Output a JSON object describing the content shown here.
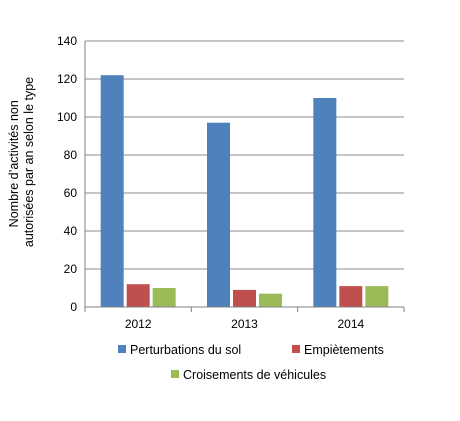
{
  "chart_data": {
    "type": "bar",
    "title": "",
    "xlabel": "",
    "ylabel": [
      "Nombre d’activités non",
      "autorisées par an selon le type"
    ],
    "categories": [
      "2012",
      "2013",
      "2014"
    ],
    "ylim": [
      0,
      140
    ],
    "yticks": [
      0,
      20,
      40,
      60,
      80,
      100,
      120,
      140
    ],
    "grid": true,
    "legend_position": "bottom",
    "series": [
      {
        "name": "Perturbations du sol",
        "color": "#4f81bd",
        "values": [
          122,
          97,
          110
        ]
      },
      {
        "name": "Empiètements",
        "color": "#c0504d",
        "values": [
          12,
          9,
          11
        ]
      },
      {
        "name": "Croisements de véhicules",
        "color": "#9bbb59",
        "values": [
          10,
          7,
          11
        ]
      }
    ]
  }
}
